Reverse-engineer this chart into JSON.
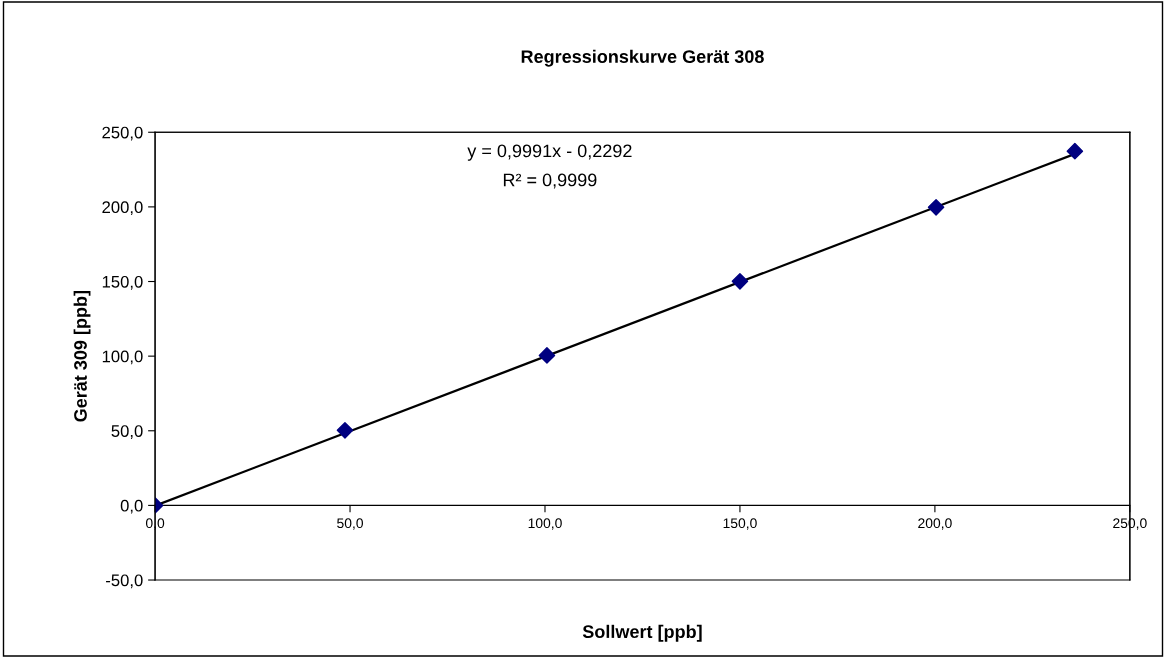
{
  "chart_data": {
    "type": "scatter",
    "title": "Regressionskurve Gerät 308",
    "xlabel": "Sollwert [ppb]",
    "ylabel": "Gerät 309 [ppb]",
    "annotations": [
      "y = 0,9991x - 0,2292",
      "R² = 0,9999"
    ],
    "series": [
      {
        "color": "#000080",
        "marker": "diamond",
        "x": [
          0,
          48.7,
          100.5,
          150,
          200.3,
          235.9
        ],
        "values": [
          0,
          50.3,
          100.5,
          150.1,
          199.7,
          237.3
        ]
      },
      {
        "type": "line",
        "color": "#000000",
        "marker": "none",
        "line_style": "solid",
        "x": [
          0,
          236
        ],
        "values": [
          -0.2,
          235.6
        ]
      }
    ],
    "xlim": [
      0,
      250
    ],
    "ylim": [
      -50,
      250
    ],
    "xticks": [
      {
        "value": 0,
        "label": "0,0"
      },
      {
        "value": 50,
        "label": "50,0"
      },
      {
        "value": 100,
        "label": "100,0"
      },
      {
        "value": 150,
        "label": "150,0"
      },
      {
        "value": 200,
        "label": "200,0"
      },
      {
        "value": 250,
        "label": "250,0"
      }
    ],
    "yticks": [
      {
        "value": -50,
        "label": "-50,0"
      },
      {
        "value": 0,
        "label": "0,0"
      },
      {
        "value": 50,
        "label": "50,0"
      },
      {
        "value": 100,
        "label": "100,0"
      },
      {
        "value": 150,
        "label": "150,0"
      },
      {
        "value": 200,
        "label": "200,0"
      },
      {
        "value": 250,
        "label": "250,0"
      }
    ],
    "grid": false,
    "legend": false
  }
}
